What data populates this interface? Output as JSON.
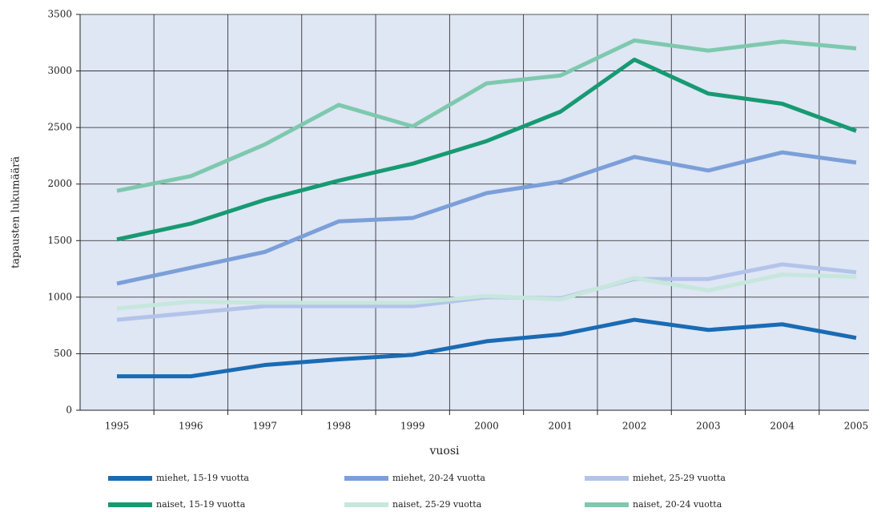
{
  "chart_data": {
    "type": "line",
    "x_label": "vuosi",
    "y_label": "tapausten lukumäärä",
    "categories": [
      "1995",
      "1996",
      "1997",
      "1998",
      "1999",
      "2000",
      "2001",
      "2002",
      "2003",
      "2004",
      "2005"
    ],
    "series": [
      {
        "name": "miehet, 15-19 vuotta",
        "color": "#1a6bb3",
        "values": [
          300,
          300,
          400,
          450,
          490,
          610,
          670,
          800,
          710,
          760,
          640
        ]
      },
      {
        "name": "miehet, 20-24 vuotta",
        "color": "#7b9fd8",
        "values": [
          1120,
          1260,
          1400,
          1670,
          1700,
          1920,
          2020,
          2240,
          2120,
          2280,
          2190
        ]
      },
      {
        "name": "miehet, 25-29 vuotta",
        "color": "#b3c3ea",
        "values": [
          800,
          860,
          920,
          920,
          920,
          1000,
          990,
          1160,
          1160,
          1290,
          1220
        ]
      },
      {
        "name": "naiset, 15-19 vuotta",
        "color": "#179a72",
        "values": [
          1510,
          1650,
          1860,
          2030,
          2180,
          2380,
          2640,
          3100,
          2800,
          2710,
          2470
        ]
      },
      {
        "name": "naiset, 25-29 vuotta",
        "color": "#c6e7dc",
        "values": [
          900,
          960,
          950,
          950,
          950,
          1010,
          980,
          1170,
          1060,
          1200,
          1180
        ]
      },
      {
        "name": "naiset, 20-24 vuotta",
        "color": "#7ec9ae",
        "values": [
          1940,
          2070,
          2350,
          2700,
          2510,
          2890,
          2960,
          3270,
          3180,
          3260,
          3200
        ]
      }
    ],
    "ylim": [
      0,
      3500
    ],
    "yticks": [
      0,
      500,
      1000,
      1500,
      2000,
      2500,
      3000,
      3500
    ],
    "grid": true
  }
}
